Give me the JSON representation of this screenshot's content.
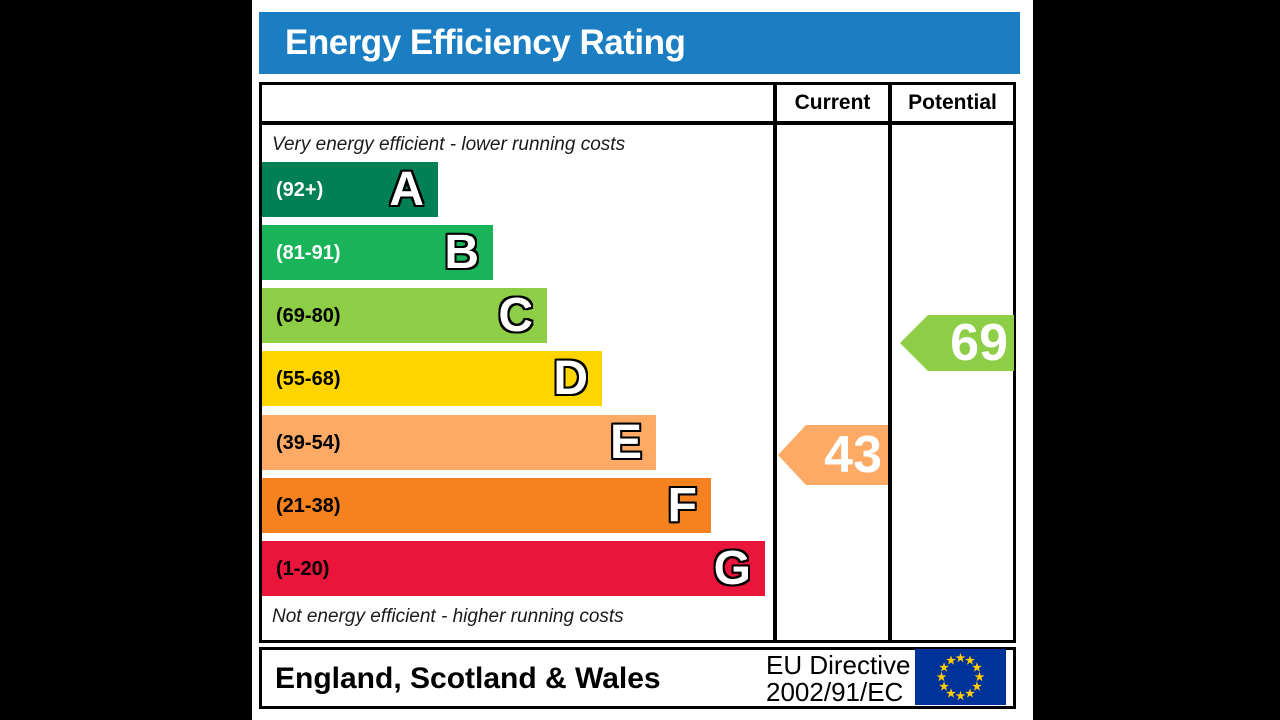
{
  "header": {
    "title": "Energy Efficiency Rating",
    "bg_color": "#1b7ec3"
  },
  "columns": {
    "current": "Current",
    "potential": "Potential"
  },
  "chart_data": {
    "type": "bar",
    "title": "Energy Efficiency Rating",
    "top_caption": "Very energy efficient - lower running costs",
    "bottom_caption": "Not energy efficient - higher running costs",
    "bands": [
      {
        "letter": "A",
        "range_label": "(92+)",
        "min": 92,
        "max": 100,
        "color": "#008054",
        "label_color": "#ffffff"
      },
      {
        "letter": "B",
        "range_label": "(81-91)",
        "min": 81,
        "max": 91,
        "color": "#19b459",
        "label_color": "#ffffff"
      },
      {
        "letter": "C",
        "range_label": "(69-80)",
        "min": 69,
        "max": 80,
        "color": "#8dce46",
        "label_color": "#000000"
      },
      {
        "letter": "D",
        "range_label": "(55-68)",
        "min": 55,
        "max": 68,
        "color": "#ffd500",
        "label_color": "#000000"
      },
      {
        "letter": "E",
        "range_label": "(39-54)",
        "min": 39,
        "max": 54,
        "color": "#fcaa65",
        "label_color": "#000000"
      },
      {
        "letter": "F",
        "range_label": "(21-38)",
        "min": 21,
        "max": 38,
        "color": "#f5821f",
        "label_color": "#000000"
      },
      {
        "letter": "G",
        "range_label": "(1-20)",
        "min": 1,
        "max": 20,
        "color": "#e9153b",
        "label_color": "#000000"
      }
    ],
    "current": {
      "value": 43,
      "band": "E",
      "color": "#fcaa65"
    },
    "potential": {
      "value": 69,
      "band": "C",
      "color": "#8dce46"
    }
  },
  "footer": {
    "region": "England, Scotland & Wales",
    "directive_line1": "EU Directive",
    "directive_line2": "2002/91/EC",
    "flag": {
      "icon": "eu-flag-icon",
      "bg": "#003399",
      "star_color": "#ffcc00",
      "star_count": 12
    }
  }
}
